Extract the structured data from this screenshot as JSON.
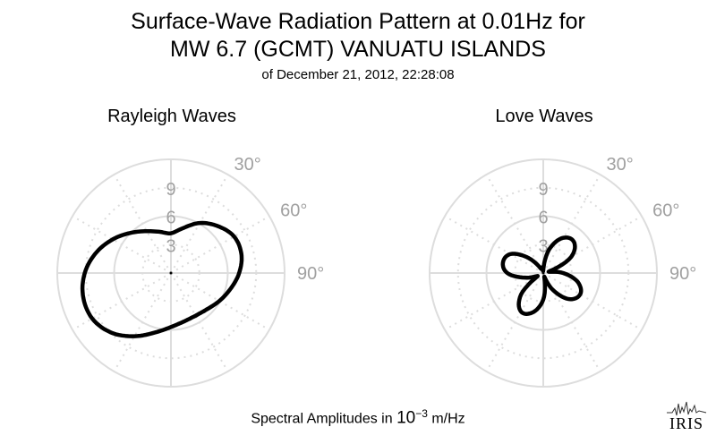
{
  "title": {
    "line1": "Surface-Wave Radiation Pattern at 0.01Hz for",
    "line2": "MW 6.7 (GCMT) VANUATU ISLANDS",
    "line3": "of December 21, 2012, 22:28:08"
  },
  "footer": {
    "prefix": "Spectral Amplitudes in ",
    "base": "10",
    "exponent": "−3",
    "unit": " m/Hz"
  },
  "logo": {
    "text": "IRIS"
  },
  "colors": {
    "grid": "#dddddd",
    "tick_label": "#a0a0a0",
    "curve": "#000000"
  },
  "chart_data": [
    {
      "type": "polar-line",
      "title": "Rayleigh Waves",
      "r_ticks": [
        3,
        6,
        9
      ],
      "r_tick_labels": [
        "3",
        "6",
        "9"
      ],
      "r_max": 12,
      "theta_labels": [
        {
          "angle": 30,
          "text": "30°"
        },
        {
          "angle": 60,
          "text": "60°"
        },
        {
          "angle": 90,
          "text": "90°"
        }
      ],
      "theta_direction": "clockwise",
      "theta_zero": "north",
      "grid": true,
      "series": [
        {
          "theta": [
            0,
            15,
            30,
            45,
            60,
            75,
            90,
            105,
            120,
            135,
            150,
            165,
            180,
            195,
            210,
            225,
            240,
            255,
            270,
            285,
            300,
            315,
            330,
            345
          ],
          "r": [
            4.2,
            4.9,
            6.1,
            7.0,
            7.7,
            7.7,
            7.2,
            6.5,
            5.9,
            5.4,
            5.2,
            5.3,
            5.7,
            6.5,
            7.7,
            8.9,
            9.6,
            9.6,
            9.1,
            8.2,
            7.1,
            6.0,
            5.1,
            4.5
          ]
        }
      ]
    },
    {
      "type": "polar-line",
      "title": "Love Waves",
      "r_ticks": [
        3,
        6,
        9
      ],
      "r_tick_labels": [
        "3",
        "6",
        "9"
      ],
      "r_max": 12,
      "theta_labels": [
        {
          "angle": 30,
          "text": "30°"
        },
        {
          "angle": 60,
          "text": "60°"
        },
        {
          "angle": 90,
          "text": "90°"
        }
      ],
      "theta_direction": "clockwise",
      "theta_zero": "north",
      "grid": true,
      "series": [
        {
          "theta": [
            0,
            15,
            30,
            45,
            60,
            75,
            90,
            105,
            120,
            135,
            150,
            165,
            180,
            195,
            210,
            225,
            240,
            255,
            270,
            285,
            300,
            315,
            330,
            345,
            360
          ],
          "r": [
            0.3,
            2.7,
            4.3,
            4.6,
            3.4,
            0.6,
            2.1,
            3.8,
            4.5,
            3.9,
            2.1,
            0.4,
            2.8,
            4.3,
            4.7,
            3.4,
            0.7,
            1.9,
            3.8,
            4.4,
            4.0,
            2.3,
            0.6,
            0.6,
            0.3
          ]
        }
      ]
    }
  ]
}
